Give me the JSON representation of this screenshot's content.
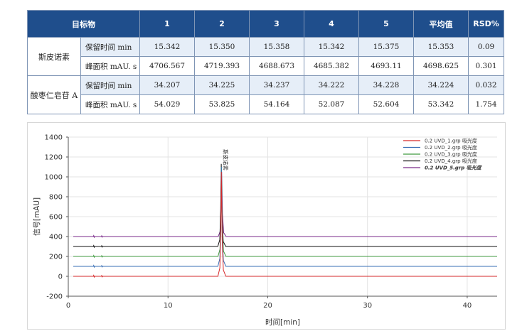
{
  "table": {
    "headers": [
      "目标物",
      "1",
      "2",
      "3",
      "4",
      "5",
      "平均值",
      "RSD%"
    ],
    "compounds": [
      {
        "name": "斯皮诺素",
        "rows": [
          {
            "param": "保留时间 min",
            "values": [
              "15.342",
              "15.350",
              "15.358",
              "15.342",
              "15.375",
              "15.353",
              "0.09"
            ]
          },
          {
            "param": "峰面积 mAU. s",
            "values": [
              "4706.567",
              "4719.393",
              "4688.673",
              "4685.382",
              "4693.11",
              "4698.625",
              "0.301"
            ]
          }
        ]
      },
      {
        "name": "酸枣仁皂苷 A",
        "rows": [
          {
            "param": "保留时间 min",
            "values": [
              "34.207",
              "34.225",
              "34.237",
              "34.222",
              "34.228",
              "34.224",
              "0.032"
            ]
          },
          {
            "param": "峰面积 mAU. s",
            "values": [
              "54.029",
              "53.825",
              "54.164",
              "52.087",
              "52.604",
              "53.342",
              "1.754"
            ]
          }
        ]
      }
    ]
  },
  "chart_data": {
    "type": "line",
    "title": "",
    "xlabel": "时间[min]",
    "ylabel": "信号[mAU]",
    "xlim": [
      0,
      43
    ],
    "ylim": [
      -200,
      1400
    ],
    "xticks": [
      0,
      10,
      20,
      30,
      40
    ],
    "yticks": [
      -200,
      0,
      200,
      400,
      600,
      800,
      1000,
      1200,
      1400
    ],
    "grid": true,
    "legend_position": "top-right",
    "peak_label": "斯皮诺素",
    "peak_label_x": 15.35,
    "series": [
      {
        "name": "0.2  UVD_1.grp 吸光度",
        "color": "#d62728",
        "baseline": 0,
        "peak_x": 15.35,
        "peak_height": 1050
      },
      {
        "name": "0.2  UVD_2.grp 吸光度",
        "color": "#3a6fb5",
        "baseline": 100,
        "peak_x": 15.35,
        "peak_height": 1000
      },
      {
        "name": "0.2  UVD_3.grp 吸光度",
        "color": "#3f9a3f",
        "baseline": 200,
        "peak_x": 15.36,
        "peak_height": 900
      },
      {
        "name": "0.2  UVD_4.grp 吸光度",
        "color": "#111111",
        "baseline": 300,
        "peak_x": 15.34,
        "peak_height": 830
      },
      {
        "name": "0.2  UVD_5.grp 吸光度",
        "color": "#7a2a8a",
        "baseline": 400,
        "peak_x": 15.38,
        "peak_height": 650
      }
    ]
  }
}
